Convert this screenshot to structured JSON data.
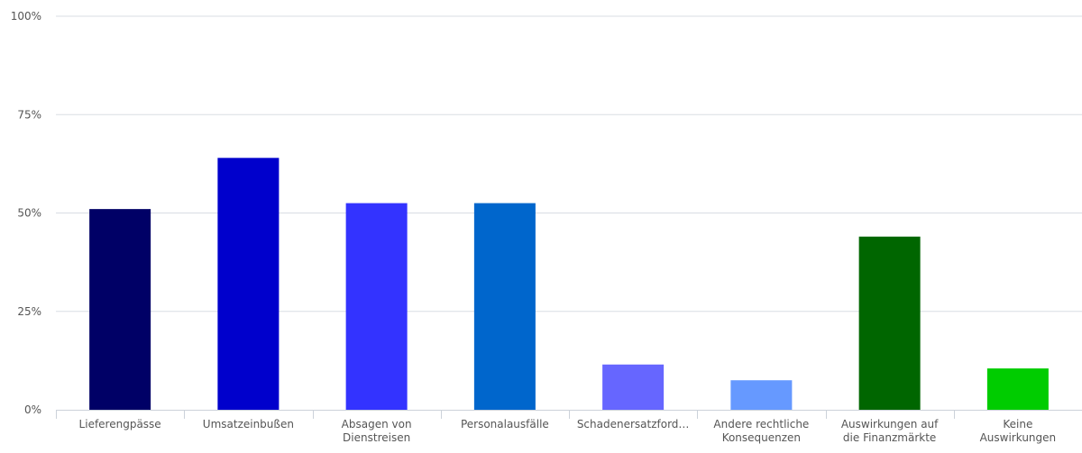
{
  "chart_data": {
    "type": "bar",
    "title": "",
    "xlabel": "",
    "ylabel": "",
    "ylim": [
      0,
      100
    ],
    "y_ticks": [
      "0%",
      "25%",
      "50%",
      "75%",
      "100%"
    ],
    "y_tick_values": [
      0,
      25,
      50,
      75,
      100
    ],
    "grid": true,
    "categories": [
      [
        "Lieferengpässe"
      ],
      [
        "Umsatzeinbußen"
      ],
      [
        "Absagen von",
        "Dienstreisen"
      ],
      [
        "Personalausfälle"
      ],
      [
        "Schadenersatzford…"
      ],
      [
        "Andere rechtliche",
        "Konsequenzen"
      ],
      [
        "Auswirkungen auf",
        "die Finanzmärkte"
      ],
      [
        "Keine",
        "Auswirkungen"
      ]
    ],
    "values": [
      51,
      64,
      52.5,
      52.5,
      11.5,
      7.5,
      44,
      10.5
    ],
    "colors": [
      "#000066",
      "#0000cc",
      "#3333ff",
      "#0066cc",
      "#6666ff",
      "#6699ff",
      "#006600",
      "#00cc00"
    ]
  }
}
